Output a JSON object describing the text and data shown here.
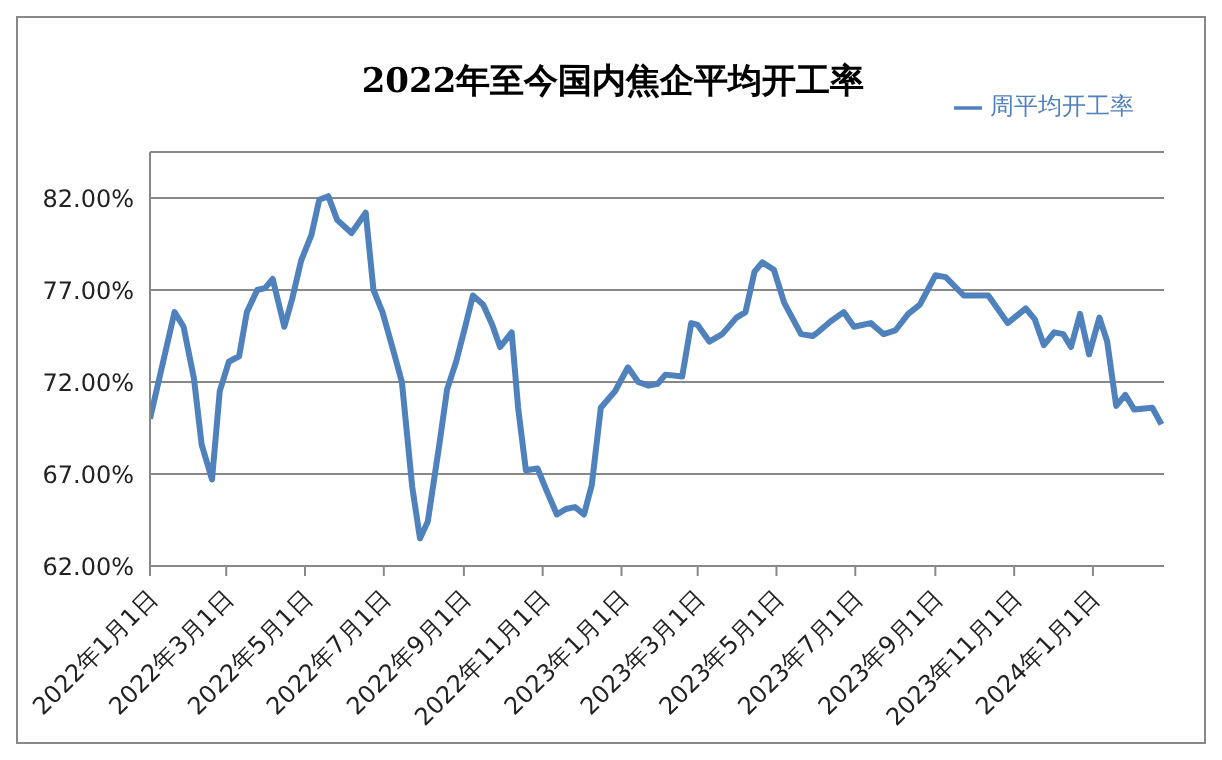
{
  "chart_data": {
    "type": "line",
    "title": "2022年至今国内焦企平均开工率",
    "x": [
      "2022-01-01",
      "2022-01-20",
      "2022-01-27",
      "2022-02-04",
      "2022-02-10",
      "2022-02-18",
      "2022-02-24",
      "2022-03-03",
      "2022-03-11",
      "2022-03-17",
      "2022-03-25",
      "2022-03-31",
      "2022-04-06",
      "2022-04-15",
      "2022-04-21",
      "2022-04-28",
      "2022-05-06",
      "2022-05-12",
      "2022-05-19",
      "2022-05-26",
      "2022-06-06",
      "2022-06-17",
      "2022-06-23",
      "2022-06-30",
      "2022-07-08",
      "2022-07-15",
      "2022-07-23",
      "2022-07-29",
      "2022-08-04",
      "2022-08-13",
      "2022-08-19",
      "2022-08-26",
      "2022-09-02",
      "2022-09-08",
      "2022-09-16",
      "2022-09-23",
      "2022-09-29",
      "2022-10-08",
      "2022-10-13",
      "2022-10-19",
      "2022-10-28",
      "2022-11-04",
      "2022-11-12",
      "2022-11-19",
      "2022-11-26",
      "2022-12-03",
      "2022-12-09",
      "2022-12-16",
      "2022-12-27",
      "2023-01-06",
      "2023-01-14",
      "2023-01-22",
      "2023-01-29",
      "2023-02-04",
      "2023-02-17",
      "2023-02-24",
      "2023-03-01",
      "2023-03-10",
      "2023-03-20",
      "2023-03-31",
      "2023-04-07",
      "2023-04-14",
      "2023-04-20",
      "2023-04-29",
      "2023-05-07",
      "2023-05-20",
      "2023-05-29",
      "2023-06-02",
      "2023-06-12",
      "2023-06-22",
      "2023-06-30",
      "2023-07-13",
      "2023-07-23",
      "2023-08-01",
      "2023-08-11",
      "2023-08-20",
      "2023-08-26",
      "2023-09-01",
      "2023-09-09",
      "2023-09-23",
      "2023-10-12",
      "2023-10-27",
      "2023-11-10",
      "2023-11-17",
      "2023-11-24",
      "2023-12-02",
      "2023-12-09",
      "2023-12-15",
      "2023-12-22",
      "2023-12-29",
      "2024-01-06",
      "2024-01-12",
      "2024-01-19",
      "2024-01-26",
      "2024-02-02",
      "2024-02-16",
      "2024-02-23"
    ],
    "series": [
      {
        "name": "周平均开工率",
        "color": "#4f81bd",
        "values": [
          70.0,
          75.8,
          75.0,
          72.2,
          68.6,
          66.7,
          71.5,
          73.1,
          73.4,
          75.8,
          77.0,
          77.1,
          77.6,
          75.0,
          76.5,
          78.6,
          80.0,
          81.9,
          82.1,
          80.8,
          80.1,
          81.2,
          77.0,
          75.8,
          73.8,
          72.0,
          66.3,
          63.5,
          64.4,
          68.6,
          71.6,
          73.1,
          75.0,
          76.7,
          76.2,
          75.1,
          73.9,
          74.7,
          70.6,
          67.2,
          67.3,
          66.1,
          64.8,
          65.1,
          65.2,
          64.8,
          66.4,
          70.6,
          71.5,
          72.8,
          72.0,
          71.8,
          71.9,
          72.4,
          72.3,
          75.2,
          75.1,
          74.2,
          74.6,
          75.5,
          75.8,
          78.0,
          78.5,
          78.1,
          76.3,
          74.6,
          74.5,
          74.7,
          75.3,
          75.8,
          75.0,
          75.2,
          74.6,
          74.8,
          75.7,
          76.2,
          77.0,
          77.8,
          77.7,
          76.7,
          76.7,
          75.2,
          76.0,
          75.4,
          74.0,
          74.7,
          74.6,
          73.9,
          75.7,
          73.5,
          75.5,
          74.2,
          70.7,
          71.3,
          70.5,
          70.6,
          69.7
        ]
      }
    ],
    "xlim": [
      "2022-01-01",
      "2024-02-25"
    ],
    "xticks": [
      {
        "value": "2022-01-01",
        "label": "2022年1月1日"
      },
      {
        "value": "2022-03-01",
        "label": "2022年3月1日"
      },
      {
        "value": "2022-05-01",
        "label": "2022年5月1日"
      },
      {
        "value": "2022-07-01",
        "label": "2022年7月1日"
      },
      {
        "value": "2022-09-01",
        "label": "2022年9月1日"
      },
      {
        "value": "2022-11-01",
        "label": "2022年11月1日"
      },
      {
        "value": "2023-01-01",
        "label": "2023年1月1日"
      },
      {
        "value": "2023-03-01",
        "label": "2023年3月1日"
      },
      {
        "value": "2023-05-01",
        "label": "2023年5月1日"
      },
      {
        "value": "2023-07-01",
        "label": "2023年7月1日"
      },
      {
        "value": "2023-09-01",
        "label": "2023年9月1日"
      },
      {
        "value": "2023-11-01",
        "label": "2023年11月1日"
      },
      {
        "value": "2024-01-01",
        "label": "2024年1月1日"
      }
    ],
    "ylim": [
      62,
      84.5
    ],
    "yticks": [
      {
        "value": 62,
        "label": "62.00%"
      },
      {
        "value": 67,
        "label": "67.00%"
      },
      {
        "value": 72,
        "label": "72.00%"
      },
      {
        "value": 77,
        "label": "77.00%"
      },
      {
        "value": 82,
        "label": "82.00%"
      }
    ],
    "grid": "y",
    "legend": "top right",
    "marker": "none",
    "line_style": "solid"
  }
}
